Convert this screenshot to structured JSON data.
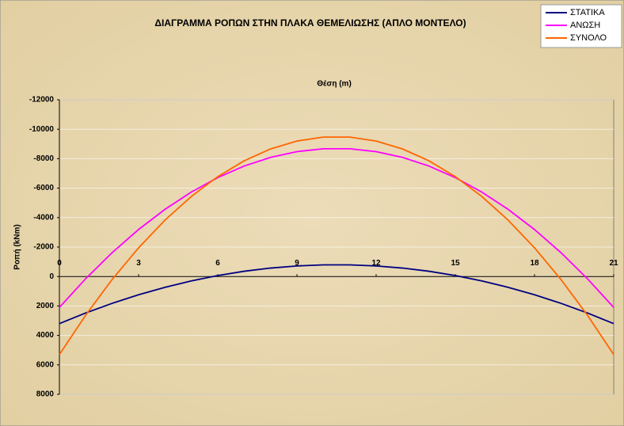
{
  "chart_data": {
    "type": "line",
    "title": "ΔΙΑΓΡΑΜΜΑ ΡΟΠΩΝ ΣΤΗΝ ΠΛΑΚΑ ΘΕΜΕΛΙΩΣΗΣ (ΑΠΛΟ ΜΟΝΤΕΛΟ)",
    "x_label": "Θέση (m)",
    "y_label": "Ροπή (kNm)",
    "x": [
      0,
      1,
      2,
      3,
      4,
      5,
      6,
      7,
      8,
      9,
      10,
      11,
      12,
      13,
      14,
      15,
      16,
      17,
      18,
      19,
      20,
      21
    ],
    "series": [
      {
        "name": "ΣΤΑΤΙΚΑ",
        "color": "#000080",
        "values": [
          3200,
          2474,
          1821,
          1241,
          733,
          298,
          -65,
          -356,
          -573,
          -718,
          -791,
          -791,
          -718,
          -573,
          -356,
          -65,
          298,
          733,
          1241,
          1821,
          2474,
          3200
        ]
      },
      {
        "name": "ΑΝΩΣΗ",
        "color": "#ff00ff",
        "values": [
          2100,
          141,
          -1623,
          -3190,
          -4561,
          -5736,
          -6716,
          -7500,
          -8088,
          -8480,
          -8675,
          -8675,
          -8480,
          -8088,
          -7500,
          -6716,
          -5736,
          -4561,
          -3190,
          -1623,
          141,
          2100
        ]
      },
      {
        "name": "ΣΥΝΟΛΟ",
        "color": "#ff6600",
        "values": [
          5300,
          2615,
          198,
          -1949,
          -3829,
          -5439,
          -6781,
          -7856,
          -8661,
          -9198,
          -9466,
          -9466,
          -9198,
          -8661,
          -7856,
          -6781,
          -5439,
          -3829,
          -1949,
          198,
          2615,
          5300
        ]
      }
    ],
    "xlim": [
      0,
      21
    ],
    "xticks": [
      0,
      3,
      6,
      9,
      12,
      15,
      18,
      21
    ],
    "ylim": [
      -12000,
      8000
    ],
    "y_reversed": true,
    "yticks": [
      -12000,
      -10000,
      -8000,
      -6000,
      -4000,
      -2000,
      0,
      2000,
      4000,
      6000,
      8000
    ],
    "grid": true,
    "legend": "top-right"
  }
}
